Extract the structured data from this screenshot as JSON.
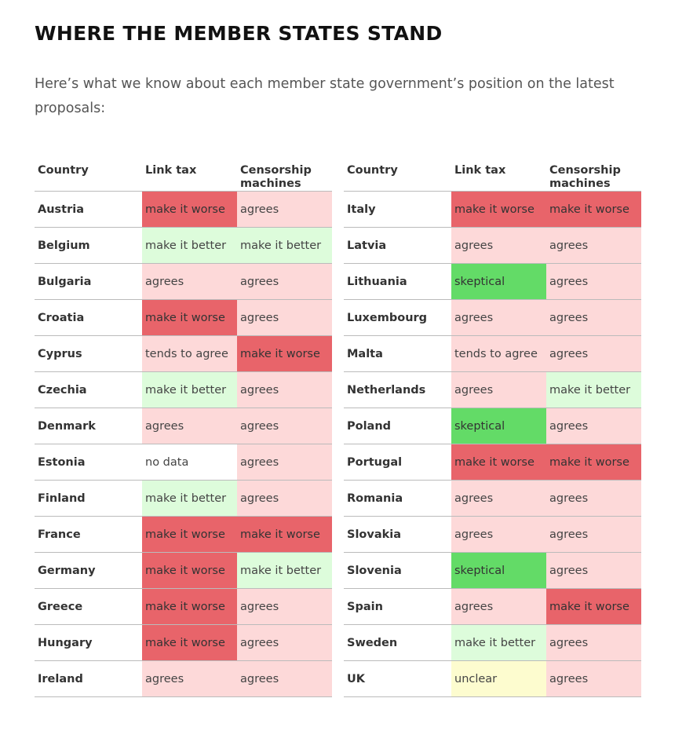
{
  "title": "WHERE THE MEMBER STATES STAND",
  "intro": "Here’s what we know about each member state government’s position on the latest proposals:",
  "columns": {
    "country": "Country",
    "link_tax": "Link tax",
    "censorship": "Censorship machines"
  },
  "status_colors": {
    "make it worse": "#e8646a",
    "agrees": "#fdd9d9",
    "make it better": "#ddfcdb",
    "skeptical": "#63db67",
    "unclear": "#fdfccf",
    "tends to agree": "#fdd9d9",
    "no data": "#ffffff"
  },
  "tables": [
    {
      "rows": [
        {
          "country": "Austria",
          "link_tax": "make it worse",
          "censorship": "agrees"
        },
        {
          "country": "Belgium",
          "link_tax": "make it better",
          "censorship": "make it better"
        },
        {
          "country": "Bulgaria",
          "link_tax": "agrees",
          "censorship": "agrees"
        },
        {
          "country": "Croatia",
          "link_tax": "make it worse",
          "censorship": "agrees"
        },
        {
          "country": "Cyprus",
          "link_tax": "tends to agree",
          "censorship": "make it worse"
        },
        {
          "country": "Czechia",
          "link_tax": "make it better",
          "censorship": "agrees"
        },
        {
          "country": "Denmark",
          "link_tax": "agrees",
          "censorship": "agrees"
        },
        {
          "country": "Estonia",
          "link_tax": "no data",
          "censorship": "agrees"
        },
        {
          "country": "Finland",
          "link_tax": "make it better",
          "censorship": "agrees"
        },
        {
          "country": "France",
          "link_tax": "make it worse",
          "censorship": "make it worse"
        },
        {
          "country": "Germany",
          "link_tax": "make it worse",
          "censorship": "make it better"
        },
        {
          "country": "Greece",
          "link_tax": "make it worse",
          "censorship": "agrees"
        },
        {
          "country": "Hungary",
          "link_tax": "make it worse",
          "censorship": "agrees"
        },
        {
          "country": "Ireland",
          "link_tax": "agrees",
          "censorship": "agrees"
        }
      ]
    },
    {
      "rows": [
        {
          "country": "Italy",
          "link_tax": "make it worse",
          "censorship": "make it worse"
        },
        {
          "country": "Latvia",
          "link_tax": "agrees",
          "censorship": "agrees"
        },
        {
          "country": "Lithuania",
          "link_tax": "skeptical",
          "censorship": "agrees"
        },
        {
          "country": "Luxembourg",
          "link_tax": "agrees",
          "censorship": "agrees"
        },
        {
          "country": "Malta",
          "link_tax": "tends to agree",
          "censorship": "agrees"
        },
        {
          "country": "Netherlands",
          "link_tax": "agrees",
          "censorship": "make it better"
        },
        {
          "country": "Poland",
          "link_tax": "skeptical",
          "censorship": "agrees"
        },
        {
          "country": "Portugal",
          "link_tax": "make it worse",
          "censorship": "make it worse"
        },
        {
          "country": "Romania",
          "link_tax": "agrees",
          "censorship": "agrees"
        },
        {
          "country": "Slovakia",
          "link_tax": "agrees",
          "censorship": "agrees"
        },
        {
          "country": "Slovenia",
          "link_tax": "skeptical",
          "censorship": "agrees"
        },
        {
          "country": "Spain",
          "link_tax": "agrees",
          "censorship": "make it worse"
        },
        {
          "country": "Sweden",
          "link_tax": "make it better",
          "censorship": "agrees"
        },
        {
          "country": "UK",
          "link_tax": "unclear",
          "censorship": "agrees"
        }
      ]
    }
  ]
}
